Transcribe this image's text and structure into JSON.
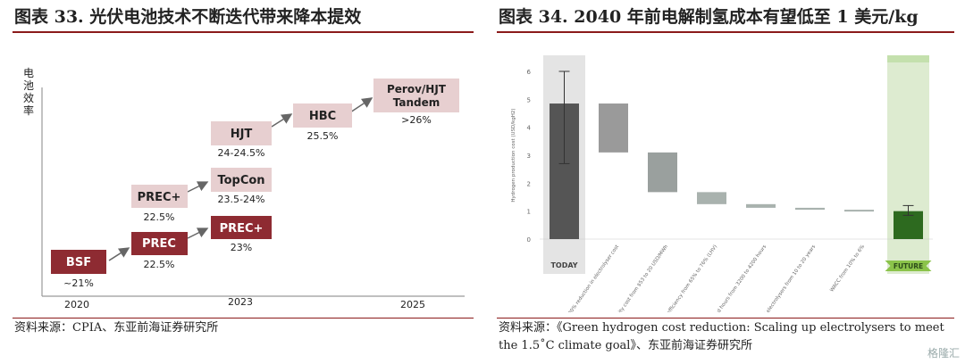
{
  "left": {
    "title": "图表 33. 光伏电池技术不断迭代带来降本提效",
    "y_axis_label": "电池效率",
    "x_ticks": [
      "2020",
      "2023",
      "2025"
    ],
    "nodes": [
      {
        "id": "bsf",
        "label": "BSF",
        "sub": "~21%",
        "style": "dark"
      },
      {
        "id": "prec1",
        "label": "PREC",
        "sub": "22.5%",
        "style": "dark"
      },
      {
        "id": "prec_plus1",
        "label": "PREC+",
        "sub": "22.5%",
        "style": "light"
      },
      {
        "id": "prec_plus2",
        "label": "PREC+",
        "sub": "23%",
        "style": "dark"
      },
      {
        "id": "topcon",
        "label": "TopCon",
        "sub": "23.5-24%",
        "style": "light"
      },
      {
        "id": "hjt",
        "label": "HJT",
        "sub": "24-24.5%",
        "style": "light"
      },
      {
        "id": "hbc",
        "label": "HBC",
        "sub": "25.5%",
        "style": "light"
      },
      {
        "id": "tandem",
        "label": "Perov/HJT\nTandem",
        "sub": ">26%",
        "style": "light"
      }
    ],
    "source": "资料来源：CPIA、东亚前海证券研究所",
    "colors": {
      "dark": "#8e2b32",
      "light": "#e7cfd0",
      "arrow": "#666666"
    }
  },
  "right": {
    "title": "图表 34. 2040 年前电解制氢成本有望低至 1 美元/kg",
    "source_line1": "资料来源：《Green hydrogen cost reduction: Scaling up electrolysers to meet",
    "source_line2": "the 1.5˚C  climate goal》、东亚前海证券研究所",
    "watermark": "格隆汇",
    "chart_data": {
      "type": "bar",
      "subtype": "waterfall",
      "ylabel": "Hydrogen production cost (USD/kgH2)",
      "ylim": [
        0,
        6
      ],
      "yticks": [
        0,
        1,
        2,
        3,
        4,
        5,
        6
      ],
      "grid": false,
      "bars": [
        {
          "label": "TODAY",
          "bottom": 0,
          "top": 4.85,
          "err_low": 2.7,
          "err_high": 6.0,
          "color": "#555555"
        },
        {
          "label": "80% reduction in electrolyser cost",
          "bottom": 3.1,
          "top": 4.85,
          "color": "#9a9a9a"
        },
        {
          "label": "Electricity cost from $53 to 20 USD/MWh",
          "bottom": 1.68,
          "top": 3.1,
          "color": "#9aa09e"
        },
        {
          "label": "Electrolyser efficiency from 65% to 76% (LHV)",
          "bottom": 1.25,
          "top": 1.68,
          "color": "#a9b2ae"
        },
        {
          "label": "Full load hours from 3200 to 4200 hours",
          "bottom": 1.12,
          "top": 1.25,
          "color": "#a9b2ae"
        },
        {
          "label": "Lifetime of electrolysers from 10 to 20 years",
          "bottom": 1.05,
          "top": 1.12,
          "color": "#a9b2ae"
        },
        {
          "label": "WACC from 10% to 6%",
          "bottom": 1.0,
          "top": 1.05,
          "color": "#a9b2ae"
        },
        {
          "label": "FUTURE",
          "bottom": 0,
          "top": 1.0,
          "err_low": 0.85,
          "err_high": 1.2,
          "color": "#2d6a1f"
        }
      ],
      "today_label": "TODAY",
      "future_label": "FUTURE"
    }
  }
}
